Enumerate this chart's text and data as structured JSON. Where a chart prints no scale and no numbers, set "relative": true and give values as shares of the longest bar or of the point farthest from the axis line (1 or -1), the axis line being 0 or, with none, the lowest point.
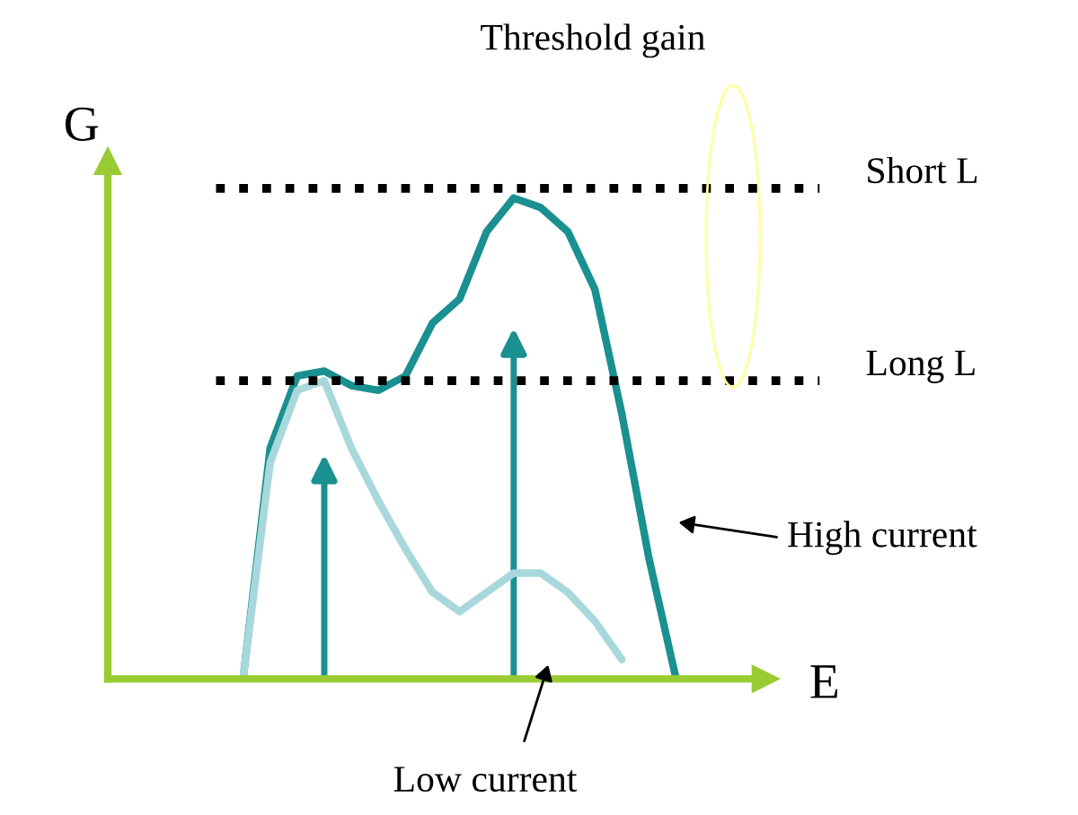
{
  "chart_data": {
    "type": "line",
    "relative": true,
    "xlabel": "E",
    "ylabel": "G",
    "tick_labels": false,
    "marker": "none",
    "categories": [
      null,
      null,
      null,
      null,
      null,
      null,
      null,
      null,
      null,
      null,
      null,
      null,
      null,
      null,
      null,
      null,
      null
    ],
    "series": [
      {
        "color": "#1a9090",
        "values": [
          0,
          0.48,
          0.63,
          0.64,
          0.61,
          0.6,
          0.63,
          0.74,
          0.79,
          0.93,
          1.0,
          0.98,
          0.93,
          0.81,
          0.55,
          0.25,
          0
        ]
      },
      {
        "color": "#a8d8dc",
        "values": [
          0,
          0.45,
          0.6,
          0.62,
          0.48,
          0.37,
          0.27,
          0.18,
          0.14,
          0.18,
          0.22,
          0.22,
          0.18,
          0.12,
          0.04,
          null,
          null
        ]
      }
    ],
    "ref_lines": [
      {
        "axis": "y",
        "value": 1.02,
        "label": "Short L",
        "line_style": "dotted",
        "color": "#000000"
      },
      {
        "axis": "y",
        "value": 0.62,
        "label": "Long L",
        "line_style": "dotted",
        "color": "#000000"
      }
    ],
    "annotations": [
      "Threshold gain",
      "High current",
      "Low current"
    ]
  }
}
